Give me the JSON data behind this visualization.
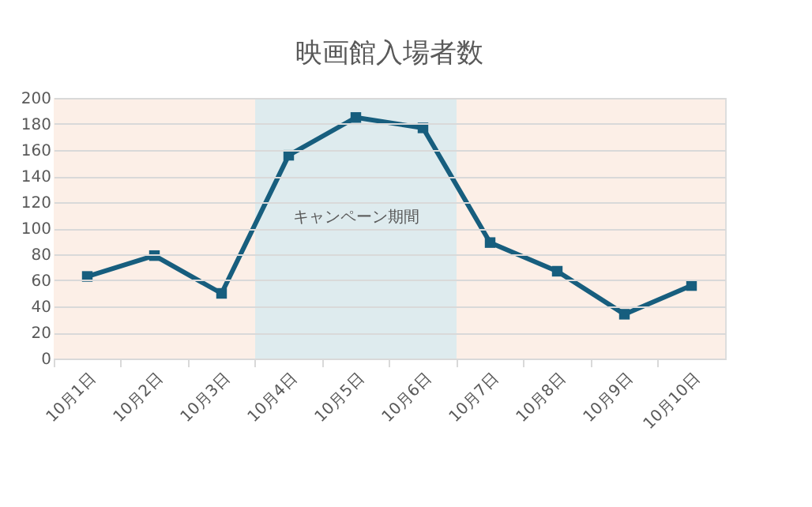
{
  "chart_data": {
    "type": "line",
    "title": "映画館入場者数",
    "categories": [
      "10月1日",
      "10月2日",
      "10月3日",
      "10月4日",
      "10月5日",
      "10月6日",
      "10月7日",
      "10月8日",
      "10月9日",
      "10月10日"
    ],
    "series": [
      {
        "color": "#175e7e",
        "values": [
          63,
          79,
          50,
          156,
          185,
          177,
          89,
          67,
          34,
          56
        ]
      }
    ],
    "ylim": [
      0,
      200
    ],
    "yticks": [
      0,
      20,
      40,
      60,
      80,
      100,
      120,
      140,
      160,
      180,
      200
    ],
    "grid": "y",
    "marker": "square",
    "line_style": "solid",
    "bands": [
      {
        "axis": "x",
        "from": "10月1日",
        "to": "10月3日",
        "label": null,
        "color": "#fcefe7"
      },
      {
        "axis": "x",
        "from": "10月4日",
        "to": "10月6日",
        "label": "キャンペーン期間",
        "color": "#deebee"
      },
      {
        "axis": "x",
        "from": "10月7日",
        "to": "10月10日",
        "label": null,
        "color": "#fcefe7"
      }
    ]
  }
}
